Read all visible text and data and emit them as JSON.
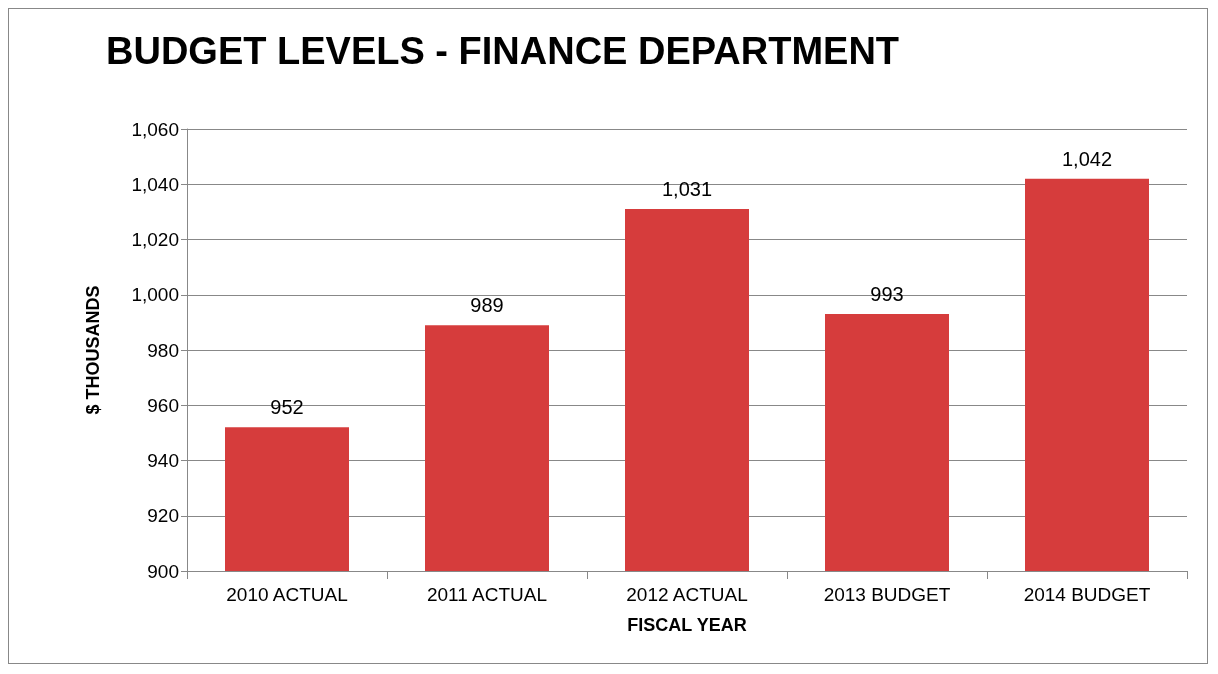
{
  "chart_data": {
    "type": "bar",
    "title": "BUDGET LEVELS - FINANCE DEPARTMENT",
    "xlabel": "FISCAL YEAR",
    "ylabel": "$ THOUSANDS",
    "categories": [
      "2010 ACTUAL",
      "2011 ACTUAL",
      "2012 ACTUAL",
      "2013 BUDGET",
      "2014 BUDGET"
    ],
    "values": [
      952,
      989,
      1031,
      993,
      1042
    ],
    "value_labels": [
      "952",
      "989",
      "1,031",
      "993",
      "1,042"
    ],
    "color": "#d63c3c",
    "ylim": [
      900,
      1060
    ],
    "yticks": [
      900,
      920,
      940,
      960,
      980,
      {
        "value": 1000,
        "label": "1,000"
      },
      {
        "value": 1020,
        "label": "1,020"
      },
      {
        "value": 1040,
        "label": "1,040"
      },
      {
        "value": 1060,
        "label": "1,060"
      }
    ],
    "grid": "y"
  }
}
